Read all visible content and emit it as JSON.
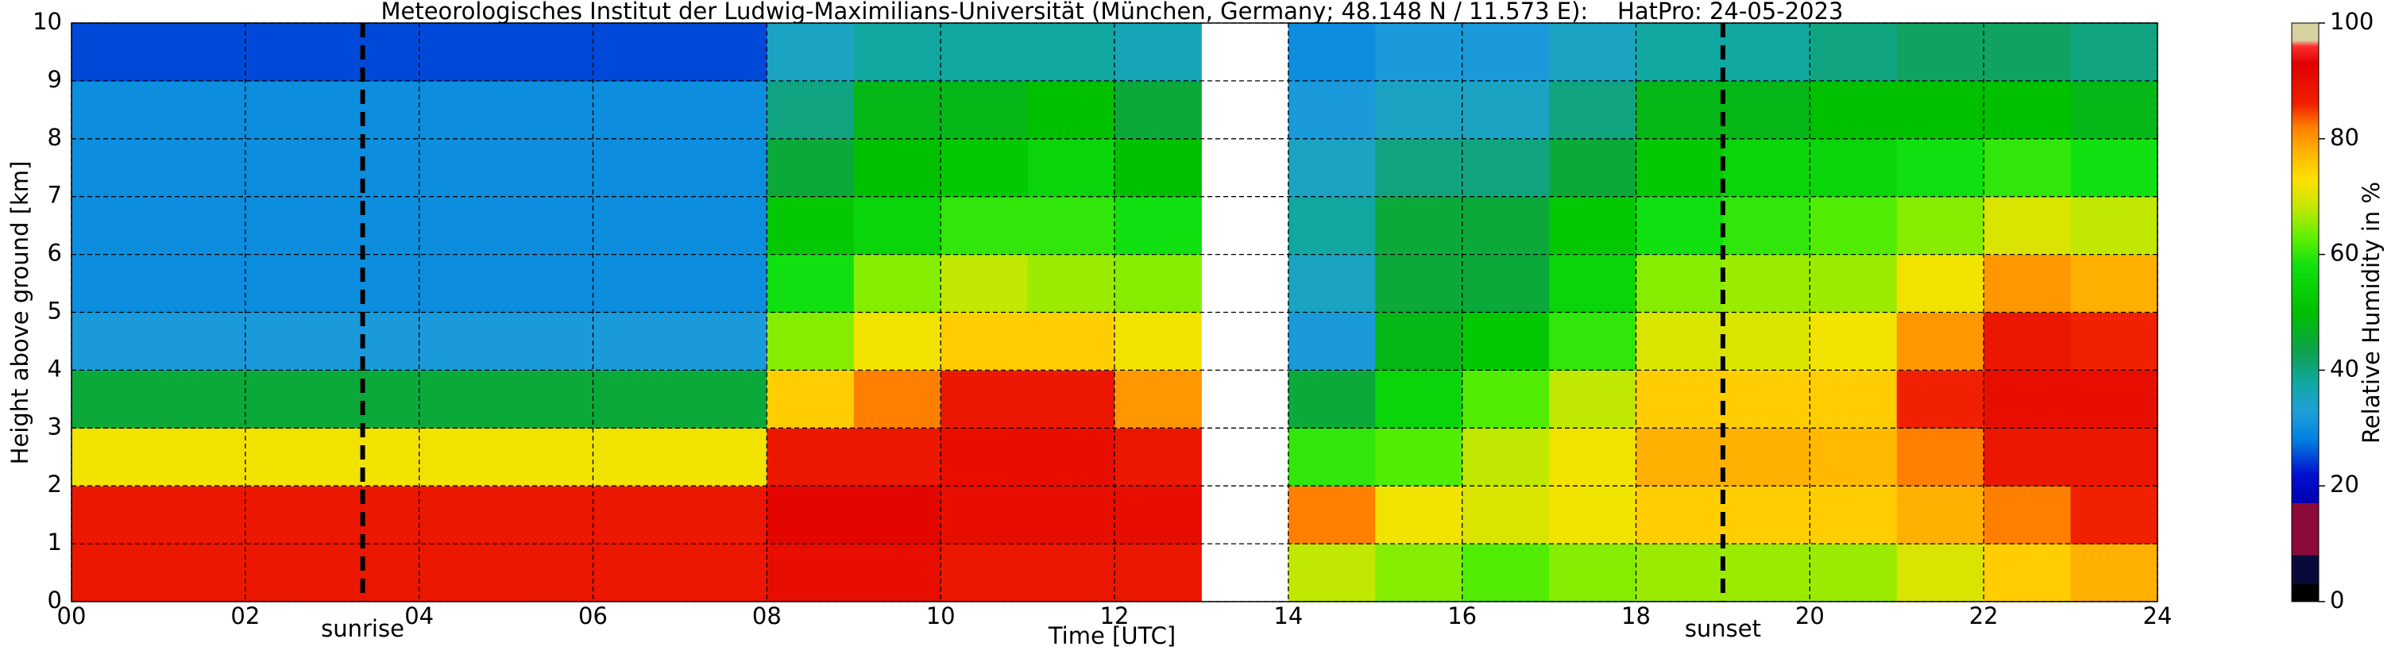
{
  "chart_data": {
    "type": "heatmap",
    "title": "Meteorologisches Institut der Ludwig-Maximilians-Universität (München, Germany; 48.148 N / 11.573 E):    HatPro: 24-05-2023",
    "xlabel": "Time [UTC]",
    "ylabel": "Height above ground [km]",
    "colorbar_label": "Relative Humidity in %",
    "xbins": [
      0,
      1,
      2,
      3,
      4,
      5,
      6,
      7,
      8,
      9,
      10,
      11,
      12,
      13,
      14,
      15,
      16,
      17,
      18,
      19,
      20,
      21,
      22,
      23,
      24
    ],
    "ybins": [
      0,
      1,
      2,
      3,
      4,
      5,
      6,
      7,
      8,
      9,
      10
    ],
    "values": [
      [
        88,
        88,
        88,
        88,
        88,
        88,
        88,
        88,
        90,
        90,
        88,
        88,
        88,
        null,
        68,
        65,
        62,
        65,
        66,
        66,
        66,
        70,
        75,
        78
      ],
      [
        88,
        88,
        88,
        88,
        88,
        88,
        88,
        88,
        92,
        92,
        90,
        90,
        90,
        null,
        82,
        72,
        70,
        72,
        75,
        75,
        75,
        78,
        82,
        86
      ],
      [
        72,
        72,
        72,
        72,
        72,
        72,
        72,
        72,
        88,
        88,
        90,
        90,
        88,
        null,
        60,
        62,
        68,
        72,
        78,
        78,
        77,
        82,
        88,
        88
      ],
      [
        45,
        45,
        45,
        45,
        45,
        45,
        45,
        45,
        75,
        82,
        88,
        88,
        80,
        null,
        45,
        55,
        62,
        68,
        75,
        75,
        75,
        86,
        90,
        90
      ],
      [
        32,
        32,
        32,
        32,
        32,
        32,
        32,
        32,
        65,
        72,
        75,
        75,
        72,
        null,
        32,
        48,
        52,
        60,
        70,
        70,
        72,
        80,
        88,
        86
      ],
      [
        30,
        30,
        30,
        30,
        30,
        30,
        30,
        30,
        58,
        65,
        68,
        66,
        65,
        null,
        35,
        45,
        45,
        55,
        65,
        66,
        66,
        72,
        80,
        78
      ],
      [
        30,
        30,
        30,
        30,
        30,
        30,
        30,
        30,
        52,
        55,
        60,
        60,
        58,
        null,
        38,
        45,
        45,
        52,
        58,
        60,
        62,
        65,
        70,
        68
      ],
      [
        30,
        30,
        30,
        30,
        30,
        30,
        30,
        30,
        45,
        50,
        52,
        55,
        50,
        null,
        35,
        40,
        40,
        45,
        52,
        55,
        55,
        58,
        60,
        58
      ],
      [
        30,
        30,
        30,
        30,
        30,
        30,
        30,
        30,
        40,
        48,
        48,
        50,
        45,
        null,
        32,
        35,
        35,
        40,
        48,
        48,
        50,
        50,
        50,
        48
      ],
      [
        25,
        25,
        25,
        25,
        25,
        25,
        25,
        25,
        35,
        38,
        38,
        38,
        36,
        null,
        30,
        32,
        32,
        35,
        38,
        38,
        40,
        42,
        42,
        40
      ]
    ],
    "xlim": [
      0,
      24
    ],
    "ylim": [
      0,
      10
    ],
    "xticks": [
      {
        "value": 0,
        "label": "00"
      },
      {
        "value": 2,
        "label": "02"
      },
      {
        "value": 4,
        "label": "04"
      },
      {
        "value": 6,
        "label": "06"
      },
      {
        "value": 8,
        "label": "08"
      },
      10,
      12,
      14,
      16,
      18,
      20,
      22,
      24
    ],
    "yticks": [
      0,
      1,
      2,
      3,
      4,
      5,
      6,
      7,
      8,
      9,
      10
    ],
    "clim": [
      0,
      100
    ],
    "cticks": [
      0,
      20,
      40,
      60,
      80,
      100
    ],
    "grid": true,
    "colorscale": [
      [
        0,
        "#000000"
      ],
      [
        3,
        "#000000"
      ],
      [
        3.01,
        "#0a0a3a"
      ],
      [
        8,
        "#0a0a3a"
      ],
      [
        8.01,
        "#8b0a3a"
      ],
      [
        17,
        "#8b0a3a"
      ],
      [
        17.01,
        "#0000b0"
      ],
      [
        22,
        "#0010d0"
      ],
      [
        28,
        "#0080e0"
      ],
      [
        33,
        "#20a0d8"
      ],
      [
        38,
        "#10a8a0"
      ],
      [
        43,
        "#10a050"
      ],
      [
        50,
        "#00c000"
      ],
      [
        58,
        "#10e010"
      ],
      [
        63,
        "#60f000"
      ],
      [
        68,
        "#c0e800"
      ],
      [
        73,
        "#ffe000"
      ],
      [
        78,
        "#ffb000"
      ],
      [
        82,
        "#ff8000"
      ],
      [
        86,
        "#f02000"
      ],
      [
        93,
        "#e00000"
      ],
      [
        96,
        "#ff3030"
      ],
      [
        97,
        "#d8d0a0"
      ],
      [
        100,
        "#d8d0a0"
      ]
    ],
    "annotations": [
      {
        "text": "sunrise",
        "x": 3.35
      },
      {
        "text": "sunset",
        "x": 19.0
      }
    ]
  }
}
